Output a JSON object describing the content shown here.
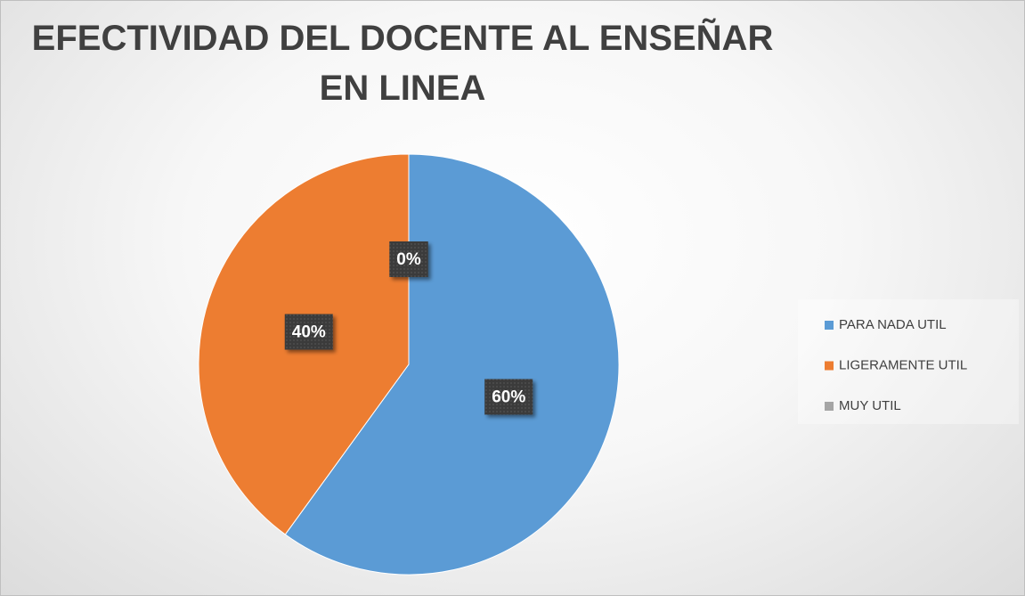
{
  "chart_data": {
    "type": "pie",
    "title": "EFECTIVIDAD DEL DOCENTE AL ENSEÑAR EN LINEA",
    "categories": [
      "PARA NADA UTIL",
      "LIGERAMENTE UTIL",
      "MUY UTIL"
    ],
    "values": [
      60,
      40,
      0
    ],
    "value_labels": [
      "60%",
      "40%",
      "0%"
    ],
    "colors": [
      "#5b9bd5",
      "#ed7d31",
      "#a5a5a5"
    ],
    "legend": "right"
  }
}
